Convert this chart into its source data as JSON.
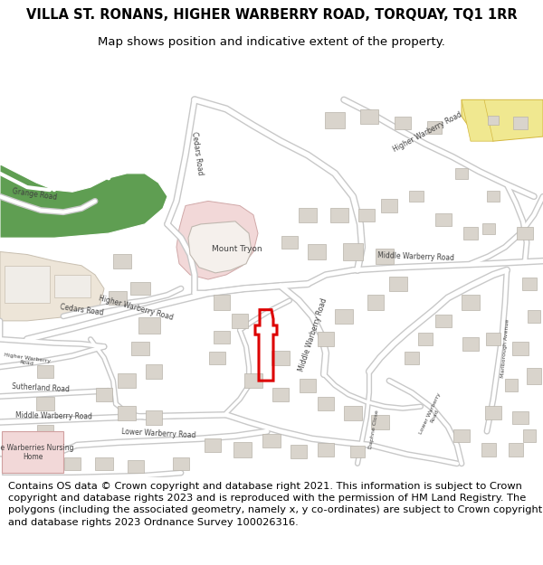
{
  "title_line1": "VILLA ST. RONANS, HIGHER WARBERRY ROAD, TORQUAY, TQ1 1RR",
  "title_line2": "Map shows position and indicative extent of the property.",
  "title_fontsize": 10.5,
  "subtitle_fontsize": 9.5,
  "footer_text": "Contains OS data © Crown copyright and database right 2021. This information is subject to Crown copyright and database rights 2023 and is reproduced with the permission of HM Land Registry. The polygons (including the associated geometry, namely x, y co-ordinates) are subject to Crown copyright and database rights 2023 Ordnance Survey 100026316.",
  "footer_fontsize": 8.2,
  "map_bg": "#f5f3f0",
  "road_color": "#ffffff",
  "road_outline": "#c8c8c8",
  "green_color": "#5f9e52",
  "pink_color": "#f2d8d8",
  "beige_color": "#ede5d8",
  "yellow_color": "#f0e890",
  "building_color": "#d9d4cc",
  "building_edge": "#b8b3aa",
  "highlight_color": "#dd0000",
  "text_color": "#404040",
  "bg_color": "#ffffff",
  "fig_width": 6.0,
  "fig_height": 6.25
}
